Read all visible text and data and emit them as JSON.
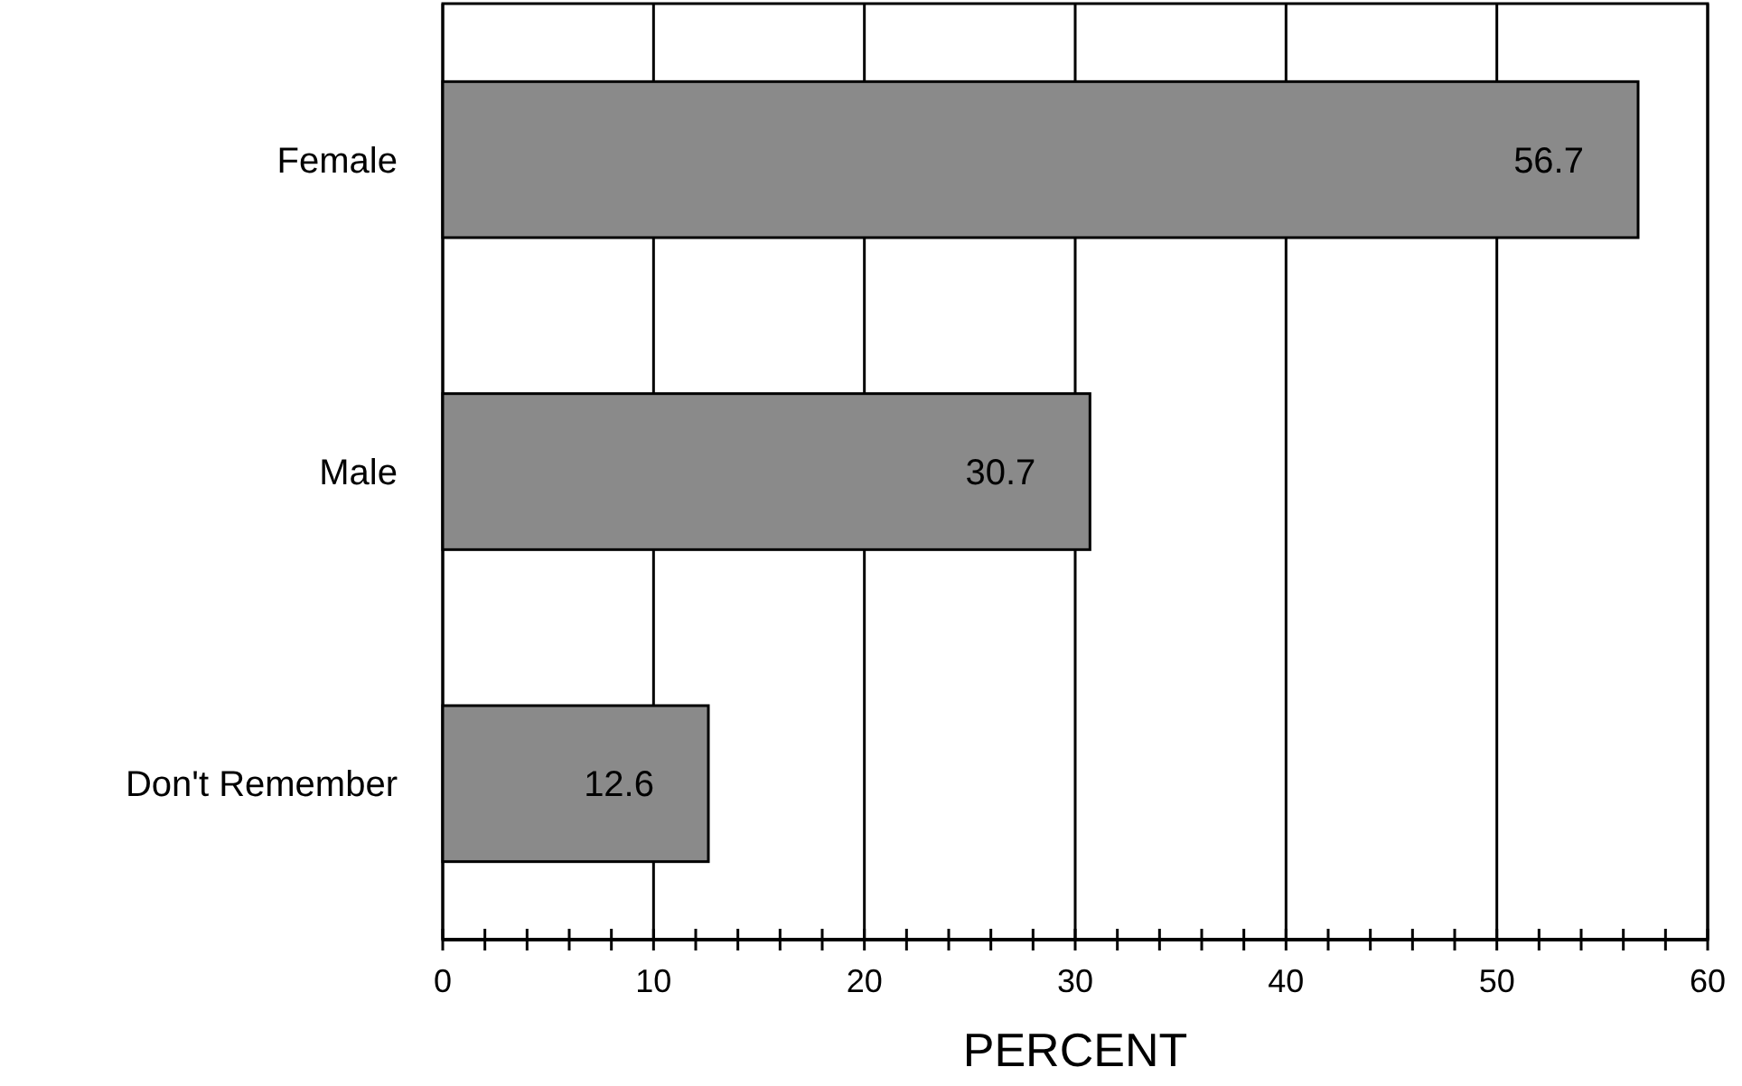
{
  "chart_data": {
    "type": "bar",
    "orientation": "horizontal",
    "categories": [
      "Female",
      "Male",
      "Don't Remember"
    ],
    "values": [
      56.7,
      30.7,
      12.6
    ],
    "color": "#8a8a8a",
    "data_labels": true,
    "xlabel": "PERCENT",
    "xlim": [
      0,
      60
    ],
    "xticks": [
      0,
      {
        "value": 2,
        "label": null
      },
      {
        "value": 4,
        "label": null
      },
      {
        "value": 6,
        "label": null
      },
      {
        "value": 8,
        "label": null
      },
      10,
      {
        "value": 12,
        "label": null
      },
      {
        "value": 14,
        "label": null
      },
      {
        "value": 16,
        "label": null
      },
      {
        "value": 18,
        "label": null
      },
      20,
      {
        "value": 22,
        "label": null
      },
      {
        "value": 24,
        "label": null
      },
      {
        "value": 26,
        "label": null
      },
      {
        "value": 28,
        "label": null
      },
      30,
      {
        "value": 32,
        "label": null
      },
      {
        "value": 34,
        "label": null
      },
      {
        "value": 36,
        "label": null
      },
      {
        "value": 38,
        "label": null
      },
      40,
      {
        "value": 42,
        "label": null
      },
      {
        "value": 44,
        "label": null
      },
      {
        "value": 46,
        "label": null
      },
      {
        "value": 48,
        "label": null
      },
      50,
      {
        "value": 52,
        "label": null
      },
      {
        "value": 54,
        "label": null
      },
      {
        "value": 56,
        "label": null
      },
      {
        "value": 58,
        "label": null
      },
      60
    ],
    "grid": "x"
  }
}
